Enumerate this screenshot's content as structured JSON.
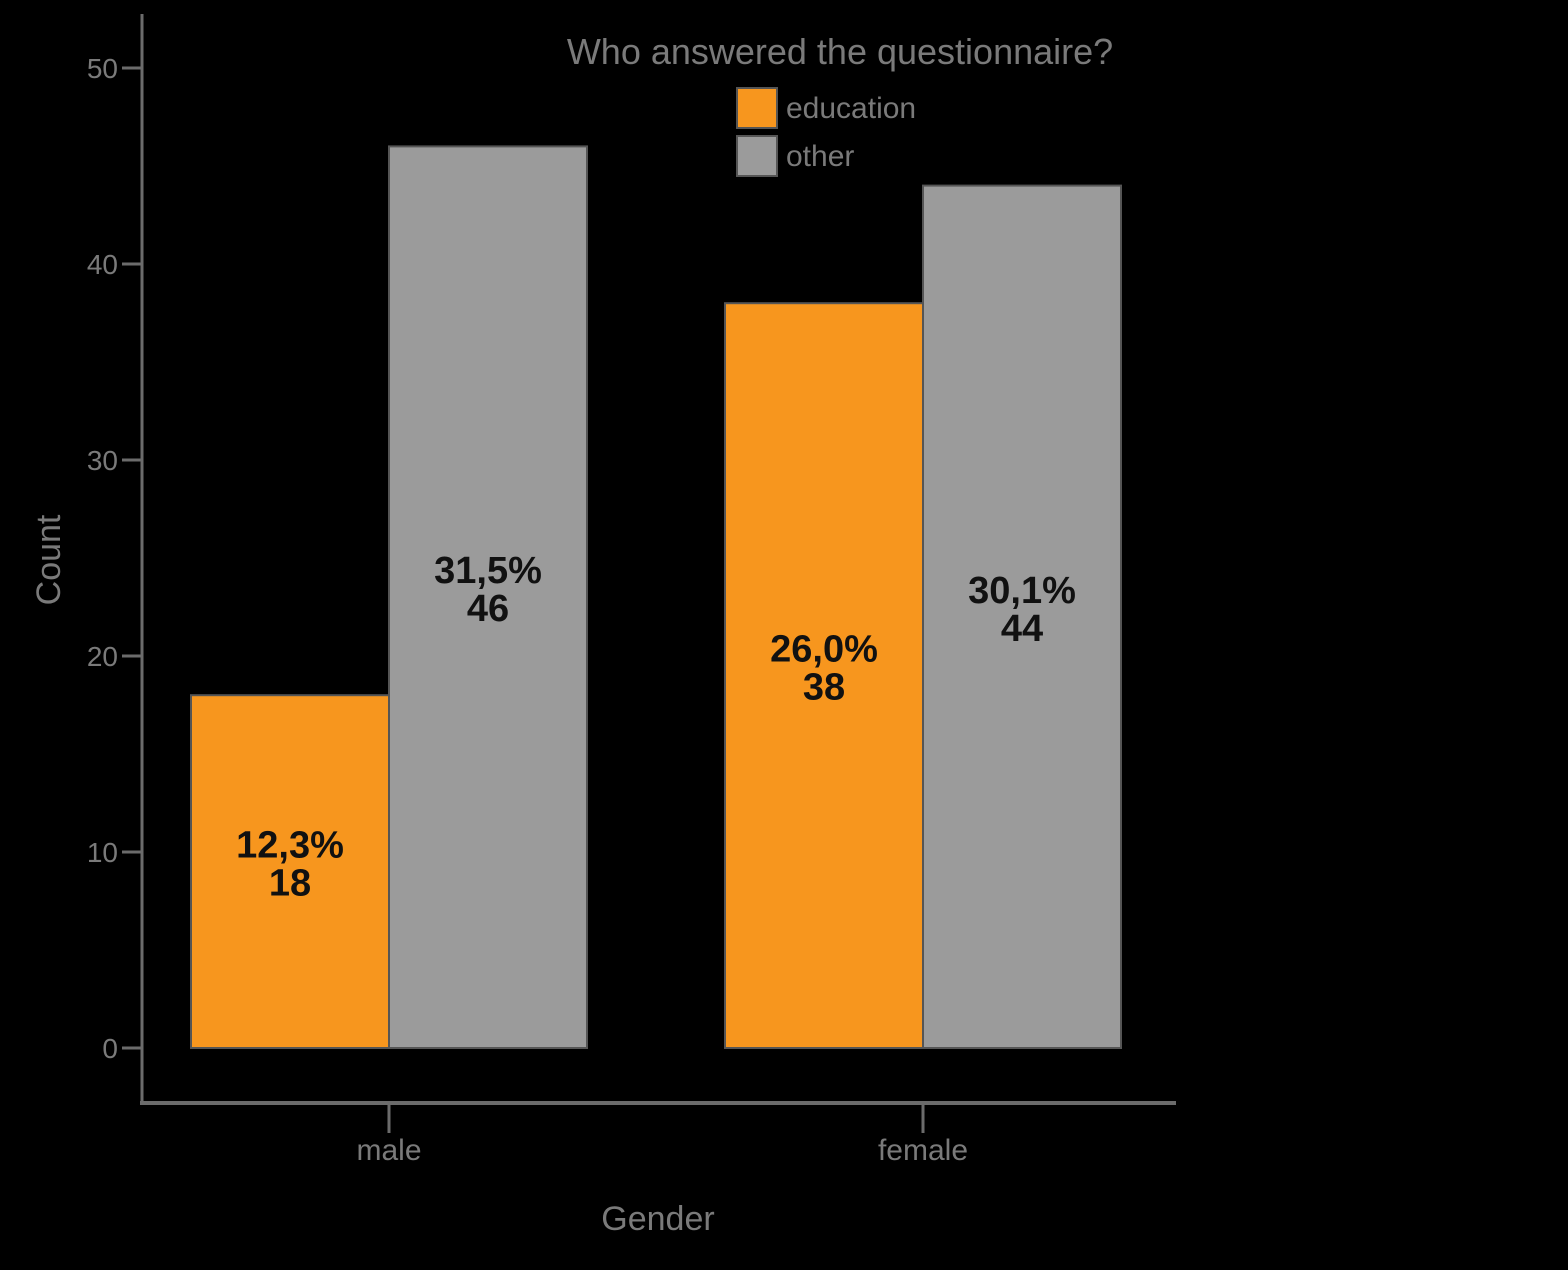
{
  "chart_data": {
    "type": "bar",
    "title": "",
    "xlabel": "Gender",
    "ylabel": "Count",
    "categories": [
      "male",
      "female"
    ],
    "series": [
      {
        "name": "education",
        "color": "#F7961E",
        "values": [
          18,
          38
        ],
        "labels": [
          "12,3%",
          "26,0%"
        ]
      },
      {
        "name": "other",
        "color": "#9B9B9B",
        "values": [
          46,
          44
        ],
        "labels": [
          "31,5%",
          "30,1%"
        ]
      }
    ],
    "legend_title": "Who answered the questionnaire?",
    "legend_position": "top-right",
    "yticks": [
      "0",
      "10",
      "20",
      "30",
      "40",
      "50"
    ],
    "ytick_values": [
      0,
      10,
      20,
      30,
      40,
      50
    ],
    "ylim": [
      0,
      50
    ],
    "grid": false
  }
}
